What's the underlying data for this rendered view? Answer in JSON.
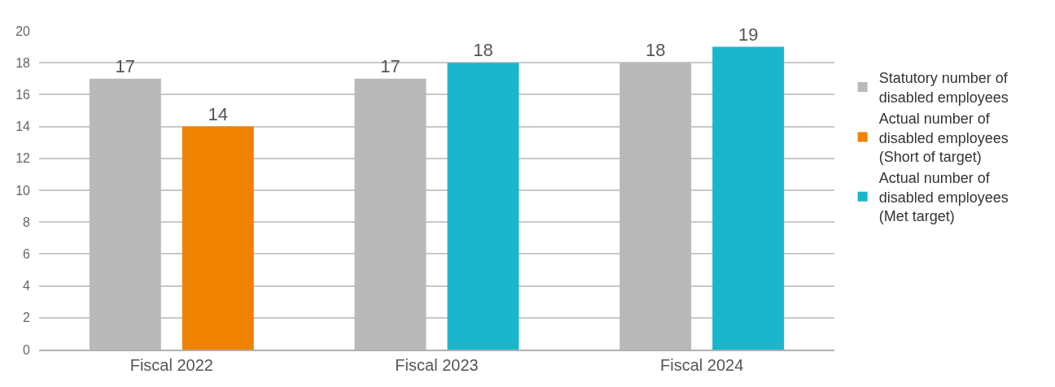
{
  "chart_data": {
    "type": "bar",
    "categories": [
      "Fiscal 2022",
      "Fiscal 2023",
      "Fiscal 2024"
    ],
    "series": [
      {
        "name": "Statutory number of\ndisabled employees",
        "color": "#b8b9b8",
        "values": [
          17,
          17,
          18
        ]
      },
      {
        "name": "Actual number of\ndisabled employees\n(Short of target)",
        "color": "#ef8200",
        "values": [
          14,
          null,
          null
        ]
      },
      {
        "name": "Actual number of\ndisabled employees\n(Met target)",
        "color": "#1ab6cc",
        "values": [
          null,
          18,
          19
        ]
      }
    ],
    "ylim": [
      0,
      20
    ],
    "yticks": [
      0,
      2,
      4,
      6,
      8,
      10,
      12,
      14,
      16,
      18,
      20
    ],
    "grid": "y",
    "legend": "right",
    "data_labels": true
  }
}
